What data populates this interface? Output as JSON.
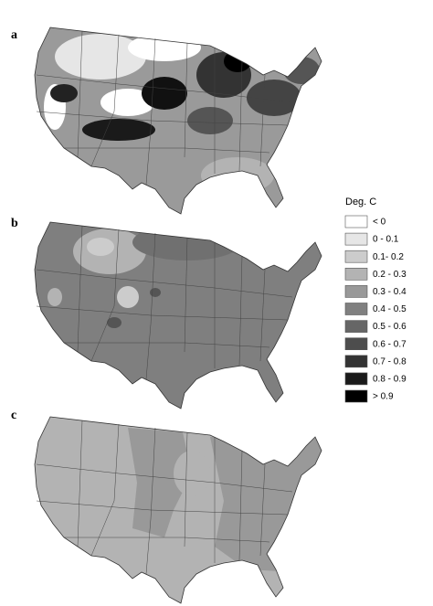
{
  "panels": [
    {
      "label": "a"
    },
    {
      "label": "b"
    },
    {
      "label": "c"
    }
  ],
  "legend": {
    "title": "Deg. C",
    "items": [
      {
        "label": "< 0",
        "color": "#ffffff"
      },
      {
        "label": "0 - 0.1",
        "color": "#e6e6e6"
      },
      {
        "label": "0.1- 0.2",
        "color": "#cccccc"
      },
      {
        "label": "0.2 - 0.3",
        "color": "#b3b3b3"
      },
      {
        "label": "0.3 - 0.4",
        "color": "#999999"
      },
      {
        "label": "0.4 - 0.5",
        "color": "#808080"
      },
      {
        "label": "0.5 - 0.6",
        "color": "#666666"
      },
      {
        "label": "0.6 - 0.7",
        "color": "#4d4d4d"
      },
      {
        "label": "0.7 - 0.8",
        "color": "#333333"
      },
      {
        "label": "0.8 - 0.9",
        "color": "#1a1a1a"
      },
      {
        "label": "> 0.9",
        "color": "#000000"
      }
    ]
  }
}
